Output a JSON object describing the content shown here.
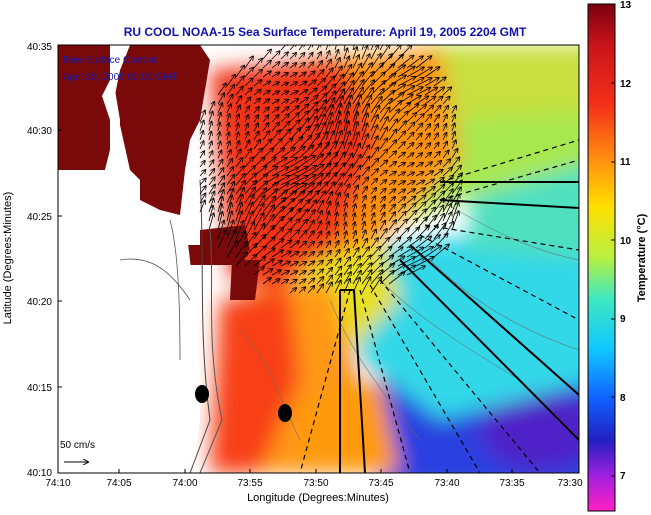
{
  "title": "RU COOL  NOAA-15  Sea Surface Temperature:  April 19, 2005 2204 GMT",
  "overlay": {
    "line1": "Raw Surface Current:",
    "line2": "April 20, 2005 00:00 GMT"
  },
  "axes": {
    "xlabel": "Longitude (Degrees:Minutes)",
    "ylabel": "Latitude (Degrees:Minutes)",
    "xticks": [
      "74:10",
      "74:05",
      "74:00",
      "73:55",
      "73:50",
      "73:45",
      "73:40",
      "73:35",
      "73:30"
    ],
    "yticks": [
      "40:35",
      "40:30",
      "40:25",
      "40:20",
      "40:15",
      "40:10"
    ]
  },
  "scale": {
    "label": "50 cm/s"
  },
  "colorbar": {
    "label": "Temperature (°C)",
    "ticks": [
      "13",
      "12",
      "11",
      "10",
      "9",
      "8",
      "7"
    ],
    "min": 6.5,
    "max": 13
  },
  "colors": {
    "title": "#1010b0",
    "overlay": "#1a1aa8",
    "land_mask": "#7a0a0a"
  }
}
